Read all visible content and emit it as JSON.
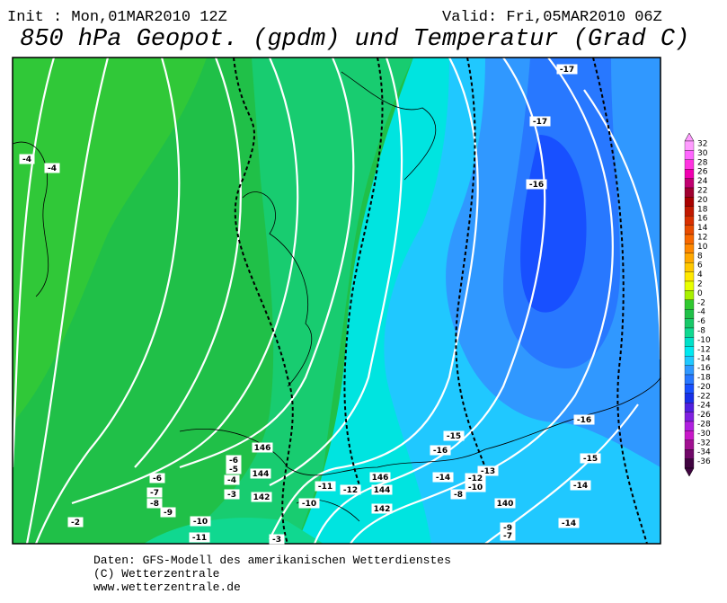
{
  "header": {
    "init": "Init : Mon,01MAR2010 12Z",
    "valid": "Valid: Fri,05MAR2010 06Z",
    "title": "850 hPa Geopot. (gpdm) und Temperatur (Grad C)"
  },
  "map_labels": [
    -4,
    -4,
    -17,
    -17,
    -16,
    -16,
    -15,
    -16,
    -15,
    -14,
    -13,
    -12,
    -10,
    -8,
    -14,
    -14,
    140,
    -9,
    -7,
    146,
    -6,
    -5,
    144,
    -4,
    -3,
    142,
    -6,
    -7,
    -8,
    -9,
    -2,
    -10,
    -11,
    -3,
    -10,
    -11,
    -12,
    146,
    144,
    142
  ],
  "scale": [
    {
      "label": 32,
      "color": "#ff9cff"
    },
    {
      "label": 30,
      "color": "#ff66ff"
    },
    {
      "label": 28,
      "color": "#ff33e0"
    },
    {
      "label": 26,
      "color": "#f000b0"
    },
    {
      "label": 24,
      "color": "#c00070"
    },
    {
      "label": 22,
      "color": "#a00030"
    },
    {
      "label": 20,
      "color": "#a80000"
    },
    {
      "label": 18,
      "color": "#c01800"
    },
    {
      "label": 16,
      "color": "#d83000"
    },
    {
      "label": 14,
      "color": "#e84c00"
    },
    {
      "label": 12,
      "color": "#f86800"
    },
    {
      "label": 10,
      "color": "#ff8800"
    },
    {
      "label": 8,
      "color": "#ffa800"
    },
    {
      "label": 6,
      "color": "#ffc800"
    },
    {
      "label": 4,
      "color": "#ffe800"
    },
    {
      "label": 2,
      "color": "#e8ff00"
    },
    {
      "label": 0,
      "color": "#a8f000"
    },
    {
      "label": -2,
      "color": "#30c830"
    },
    {
      "label": -4,
      "color": "#20c048"
    },
    {
      "label": -6,
      "color": "#18c868"
    },
    {
      "label": -8,
      "color": "#10d890"
    },
    {
      "label": -10,
      "color": "#00e0c8"
    },
    {
      "label": -12,
      "color": "#00e8f0"
    },
    {
      "label": -14,
      "color": "#20c8ff"
    },
    {
      "label": -16,
      "color": "#3098ff"
    },
    {
      "label": -18,
      "color": "#2878ff"
    },
    {
      "label": -20,
      "color": "#1850ff"
    },
    {
      "label": -22,
      "color": "#1830e8"
    },
    {
      "label": -24,
      "color": "#5020e0"
    },
    {
      "label": -26,
      "color": "#8020e0"
    },
    {
      "label": -28,
      "color": "#b020e0"
    },
    {
      "label": -30,
      "color": "#c818c8"
    },
    {
      "label": -32,
      "color": "#a01090"
    },
    {
      "label": -34,
      "color": "#700868"
    },
    {
      "label": -36,
      "color": "#400440"
    }
  ],
  "footer": [
    "Daten: GFS-Modell des amerikanischen Wetterdienstes",
    "(C) Wetterzentrale",
    "www.wetterzentrale.de"
  ]
}
